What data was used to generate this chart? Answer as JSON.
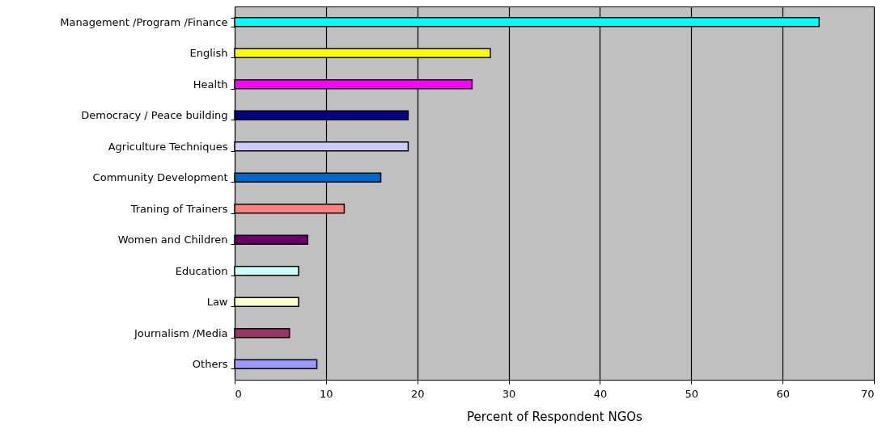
{
  "chart_data": {
    "type": "bar",
    "orientation": "horizontal",
    "xlabel": "Percent of Respondent NGOs",
    "categories": [
      "Management /Program /Finance",
      "English",
      "Health",
      "Democracy / Peace building",
      "Agriculture Techniques",
      "Community Development",
      "Traning of Trainers",
      "Women and Children",
      "Education",
      "Law",
      "Journalism /Media",
      "Others"
    ],
    "values": [
      64,
      28,
      26,
      19,
      19,
      16,
      12,
      8,
      7,
      7,
      6,
      9
    ],
    "colors": [
      "#00ffff",
      "#ffff00",
      "#ff00ff",
      "#000080",
      "#ccccff",
      "#0066cc",
      "#ff8080",
      "#660066",
      "#ccffff",
      "#ffffcc",
      "#993366",
      "#9999ff"
    ],
    "xlim": [
      0,
      70
    ],
    "xticks": [
      0,
      10,
      20,
      30,
      40,
      50,
      60,
      70
    ],
    "grid": "x"
  }
}
